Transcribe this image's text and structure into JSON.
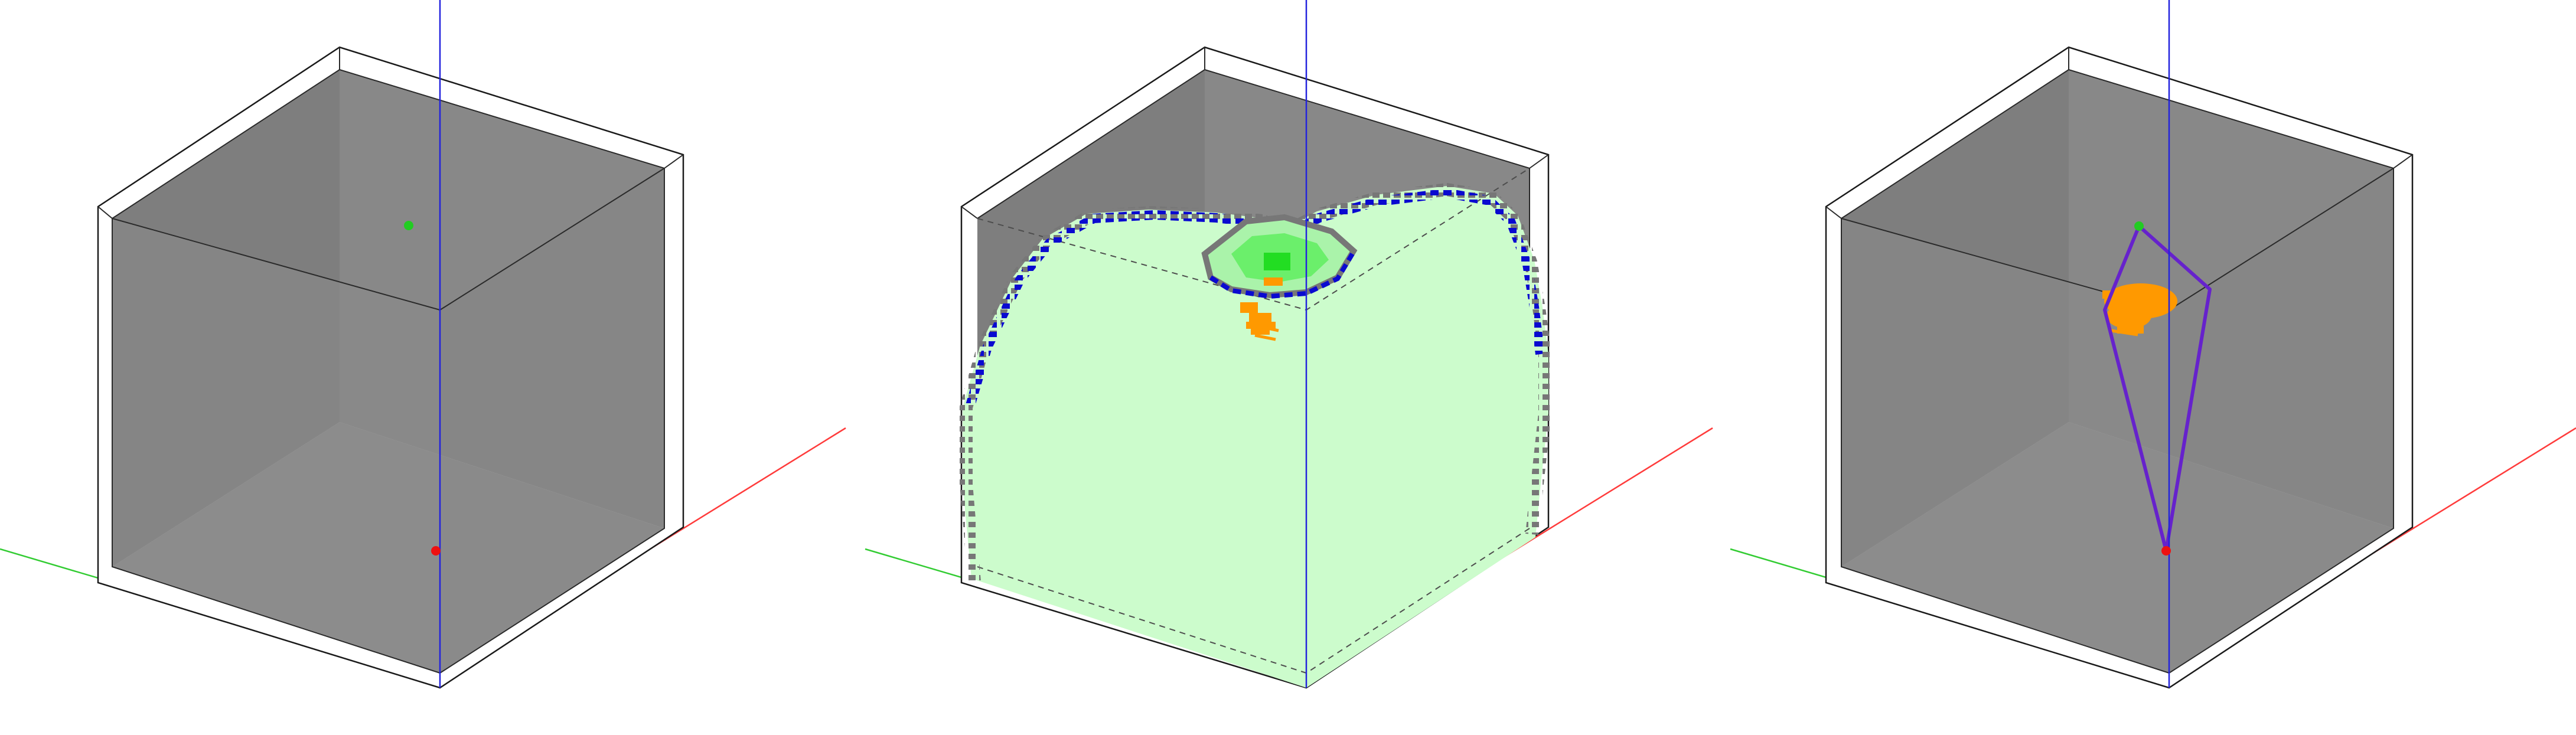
{
  "figure": {
    "panel_count": 3,
    "background_color": "#ffffff"
  },
  "colors": {
    "wall_frame": "#ffffff",
    "wall_outline": "#1a1a1a",
    "box_interior": "#8a8a8a",
    "box_interior_dark": "#7d7d7d",
    "box_floor": "#909090",
    "axis_x": "#ff3b3b",
    "axis_y": "#33cc33",
    "axis_z": "#2222dd",
    "start_point": "#22cc22",
    "goal_point": "#ee1111",
    "explored_region_fill": "#ccfccc",
    "frontier_blue": "#0a0ad0",
    "frontier_gray": "#777777",
    "bright_green": "#33ee33",
    "closed_orange": "#ff9900",
    "path_line": "#6622cc"
  },
  "panels": [
    {
      "name": "start-and-goal",
      "shows_start_point": true,
      "shows_goal_point": true,
      "shows_explored_region": false,
      "shows_path": false
    },
    {
      "name": "explored-wavefront",
      "shows_start_point": false,
      "shows_goal_point": false,
      "shows_explored_region": true,
      "shows_path": false
    },
    {
      "name": "resulting-path",
      "shows_start_point": true,
      "shows_goal_point": true,
      "shows_explored_region": false,
      "shows_path": true
    }
  ]
}
